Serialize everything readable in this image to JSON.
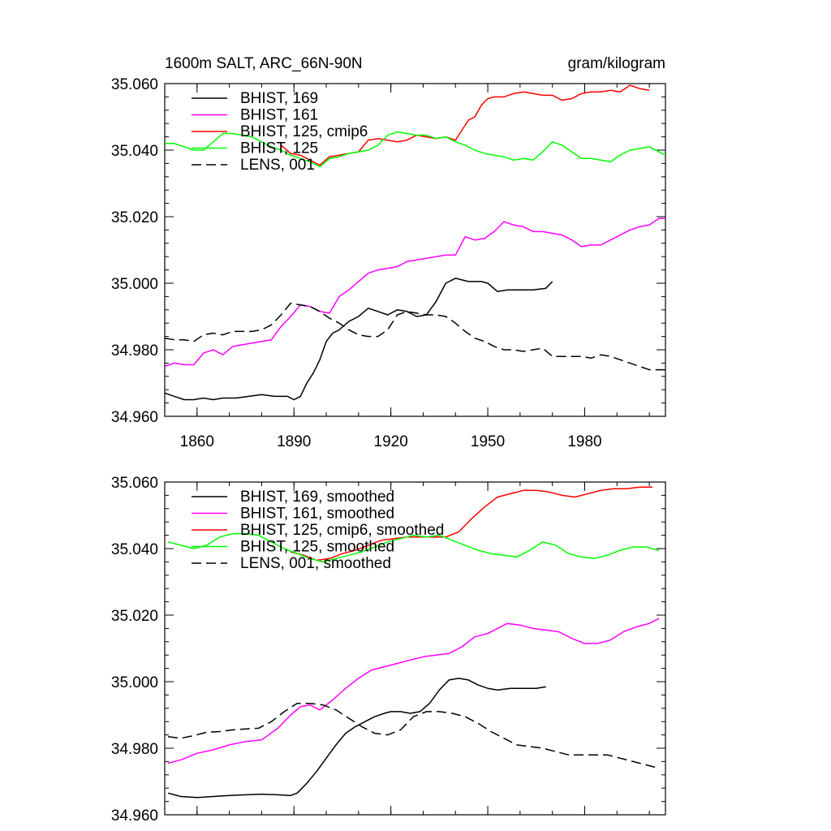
{
  "colors": {
    "black": "#000000",
    "magenta": "#ff00ff",
    "red": "#ff0000",
    "green": "#00ff00"
  },
  "chart_data": [
    {
      "type": "line",
      "title": "1600m SALT, ARC_66N-90N",
      "units": "gram/kilogram",
      "xlim": [
        1850,
        2005
      ],
      "ylim": [
        34.96,
        35.06
      ],
      "xticks": [
        1860,
        1890,
        1920,
        1950,
        1980
      ],
      "xtick_labels": [
        "1860",
        "1890",
        "1920",
        "1950",
        "1980"
      ],
      "yticks": [
        34.96,
        34.98,
        35.0,
        35.02,
        35.04,
        35.06
      ],
      "ytick_labels": [
        "34.960",
        "34.980",
        "35.000",
        "35.020",
        "35.040",
        "35.060"
      ],
      "legend_position": "top-left",
      "series": [
        {
          "name": "BHIST, 169",
          "color": "#000000",
          "dash": "solid",
          "x": [
            1850,
            1853,
            1856,
            1859,
            1862,
            1865,
            1868,
            1872,
            1876,
            1880,
            1884,
            1888,
            1890,
            1892,
            1894,
            1896,
            1898,
            1900,
            1902,
            1904,
            1907,
            1910,
            1913,
            1916,
            1919,
            1922,
            1925,
            1928,
            1931,
            1934,
            1937,
            1940,
            1944,
            1948,
            1950,
            1953,
            1956,
            1960,
            1964,
            1968,
            1970
          ],
          "values": [
            34.967,
            34.966,
            34.965,
            34.965,
            34.9655,
            34.965,
            34.9655,
            34.9655,
            34.966,
            34.9665,
            34.966,
            34.966,
            34.965,
            34.966,
            34.97,
            34.973,
            34.977,
            34.9825,
            34.985,
            34.986,
            34.9885,
            34.99,
            34.9925,
            34.9915,
            34.9905,
            34.992,
            34.9915,
            34.99,
            34.9905,
            34.9945,
            35.0,
            35.0015,
            35.0005,
            35.0005,
            35.0,
            34.9975,
            34.998,
            34.998,
            34.998,
            34.9985,
            35.0005
          ]
        },
        {
          "name": "BHIST, 161",
          "color": "#ff00ff",
          "dash": "solid",
          "x": [
            1850,
            1853,
            1856,
            1859,
            1862,
            1865,
            1868,
            1871,
            1874,
            1877,
            1880,
            1883,
            1886,
            1889,
            1892,
            1895,
            1898,
            1901,
            1904,
            1907,
            1910,
            1913,
            1916,
            1919,
            1922,
            1925,
            1928,
            1931,
            1934,
            1937,
            1940,
            1943,
            1946,
            1949,
            1952,
            1955,
            1958,
            1961,
            1964,
            1967,
            1970,
            1973,
            1976,
            1979,
            1982,
            1985,
            1988,
            1991,
            1994,
            1997,
            2000,
            2003,
            2005
          ],
          "values": [
            34.975,
            34.976,
            34.9755,
            34.9755,
            34.979,
            34.98,
            34.9785,
            34.981,
            34.9815,
            34.982,
            34.9825,
            34.983,
            34.987,
            34.99,
            34.9935,
            34.993,
            34.9915,
            34.991,
            34.996,
            34.998,
            35.0005,
            35.003,
            35.004,
            35.0045,
            35.005,
            35.0065,
            35.007,
            35.0075,
            35.008,
            35.0085,
            35.0085,
            35.014,
            35.013,
            35.0135,
            35.0155,
            35.0185,
            35.0175,
            35.017,
            35.0155,
            35.0155,
            35.015,
            35.0145,
            35.013,
            35.011,
            35.0115,
            35.0115,
            35.013,
            35.0145,
            35.016,
            35.017,
            35.0175,
            35.0195,
            35.0195
          ]
        },
        {
          "name": "BHIST, 125, cmip6",
          "color": "#ff0000",
          "dash": "solid",
          "x": [
            1886,
            1889,
            1892,
            1895,
            1898,
            1901,
            1904,
            1907,
            1910,
            1913,
            1916,
            1919,
            1922,
            1925,
            1928,
            1931,
            1934,
            1937,
            1940,
            1942,
            1944,
            1946,
            1948,
            1950,
            1952,
            1955,
            1958,
            1961,
            1964,
            1967,
            1970,
            1973,
            1976,
            1979,
            1982,
            1985,
            1988,
            1991,
            1994,
            1997,
            2000
          ],
          "values": [
            35.0415,
            35.039,
            35.0385,
            35.037,
            35.0355,
            35.038,
            35.0385,
            35.039,
            35.0395,
            35.043,
            35.0435,
            35.043,
            35.0425,
            35.043,
            35.0445,
            35.044,
            35.0435,
            35.044,
            35.043,
            35.046,
            35.049,
            35.05,
            35.0535,
            35.0555,
            35.056,
            35.056,
            35.057,
            35.0575,
            35.057,
            35.0565,
            35.0565,
            35.055,
            35.0555,
            35.057,
            35.0575,
            35.0575,
            35.058,
            35.0575,
            35.0595,
            35.0585,
            35.058
          ]
        },
        {
          "name": "BHIST, 125",
          "color": "#00ff00",
          "dash": "solid",
          "x": [
            1850,
            1853,
            1856,
            1859,
            1862,
            1865,
            1868,
            1871,
            1874,
            1877,
            1880,
            1883,
            1886,
            1889,
            1892,
            1895,
            1898,
            1901,
            1904,
            1907,
            1910,
            1913,
            1916,
            1919,
            1922,
            1925,
            1928,
            1931,
            1934,
            1937,
            1940,
            1943,
            1946,
            1949,
            1952,
            1955,
            1958,
            1961,
            1964,
            1967,
            1970,
            1973,
            1976,
            1979,
            1982,
            1985,
            1988,
            1991,
            1994,
            1997,
            2000,
            2003,
            2005
          ],
          "values": [
            35.042,
            35.042,
            35.041,
            35.04,
            35.04,
            35.0425,
            35.045,
            35.045,
            35.0445,
            35.044,
            35.0425,
            35.041,
            35.04,
            35.0385,
            35.0375,
            35.0365,
            35.035,
            35.0375,
            35.038,
            35.039,
            35.0395,
            35.04,
            35.0415,
            35.0445,
            35.0455,
            35.045,
            35.0445,
            35.0445,
            35.0435,
            35.044,
            35.0425,
            35.0415,
            35.04,
            35.039,
            35.0385,
            35.038,
            35.037,
            35.0375,
            35.037,
            35.0395,
            35.0425,
            35.0415,
            35.0395,
            35.0375,
            35.0375,
            35.037,
            35.0365,
            35.0385,
            35.04,
            35.0405,
            35.041,
            35.0395,
            35.0385
          ]
        },
        {
          "name": "LENS, 001",
          "color": "#000000",
          "dash": "dashed",
          "x": [
            1850,
            1853,
            1856,
            1859,
            1862,
            1865,
            1868,
            1871,
            1874,
            1877,
            1880,
            1883,
            1886,
            1889,
            1892,
            1895,
            1898,
            1901,
            1904,
            1907,
            1910,
            1913,
            1916,
            1919,
            1922,
            1925,
            1928,
            1931,
            1934,
            1937,
            1940,
            1943,
            1946,
            1949,
            1952,
            1955,
            1958,
            1961,
            1964,
            1967,
            1970,
            1973,
            1976,
            1979,
            1982,
            1985,
            1988,
            1991,
            1994,
            1997,
            2000,
            2003,
            2005
          ],
          "values": [
            34.9835,
            34.983,
            34.983,
            34.9825,
            34.9845,
            34.985,
            34.9845,
            34.9855,
            34.9855,
            34.9855,
            34.986,
            34.9875,
            34.9905,
            34.994,
            34.9935,
            34.993,
            34.9915,
            34.9895,
            34.988,
            34.986,
            34.9845,
            34.984,
            34.984,
            34.986,
            34.9905,
            34.9915,
            34.991,
            34.9905,
            34.9905,
            34.99,
            34.988,
            34.9855,
            34.9835,
            34.9825,
            34.981,
            34.98,
            34.98,
            34.9795,
            34.98,
            34.9805,
            34.978,
            34.978,
            34.978,
            34.978,
            34.9775,
            34.9785,
            34.978,
            34.977,
            34.976,
            34.975,
            34.974,
            34.974,
            34.974
          ]
        }
      ]
    },
    {
      "type": "line",
      "title": "",
      "units": "",
      "xlim": [
        1850,
        2005
      ],
      "ylim": [
        34.96,
        35.06
      ],
      "xticks": [
        1860,
        1890,
        1920,
        1950,
        1980
      ],
      "yticks": [
        34.96,
        34.98,
        35.0,
        35.02,
        35.04,
        35.06
      ],
      "ytick_labels": [
        "34.960",
        "34.980",
        "35.000",
        "35.020",
        "35.040",
        "35.060"
      ],
      "legend_position": "top-left",
      "series": [
        {
          "name": "BHIST, 169, smoothed",
          "color": "#000000",
          "dash": "solid",
          "x": [
            1851,
            1855,
            1860,
            1865,
            1870,
            1875,
            1880,
            1885,
            1889,
            1891,
            1894,
            1897,
            1900,
            1903,
            1906,
            1909,
            1912,
            1915,
            1918,
            1920,
            1923,
            1926,
            1929,
            1932,
            1935,
            1938,
            1941,
            1944,
            1947,
            1950,
            1953,
            1957,
            1961,
            1965,
            1968
          ],
          "values": [
            34.9665,
            34.9655,
            34.9652,
            34.9655,
            34.9658,
            34.966,
            34.9662,
            34.966,
            34.9658,
            34.9665,
            34.9695,
            34.973,
            34.977,
            34.981,
            34.9845,
            34.9865,
            34.988,
            34.9895,
            34.9905,
            34.991,
            34.991,
            34.9905,
            34.991,
            34.9935,
            34.9975,
            35.0005,
            35.001,
            35.0005,
            34.999,
            34.998,
            34.9975,
            34.998,
            34.998,
            34.998,
            34.9985
          ]
        },
        {
          "name": "BHIST, 161, smoothed",
          "color": "#ff00ff",
          "dash": "solid",
          "x": [
            1851,
            1855,
            1860,
            1865,
            1870,
            1875,
            1880,
            1885,
            1889,
            1892,
            1895,
            1898,
            1902,
            1906,
            1910,
            1914,
            1918,
            1922,
            1926,
            1930,
            1934,
            1938,
            1942,
            1946,
            1950,
            1953,
            1956,
            1960,
            1964,
            1968,
            1972,
            1976,
            1980,
            1984,
            1988,
            1992,
            1996,
            2000,
            2003
          ],
          "values": [
            34.9755,
            34.9765,
            34.9785,
            34.9795,
            34.981,
            34.982,
            34.9825,
            34.986,
            34.99,
            34.9925,
            34.993,
            34.9915,
            34.9945,
            34.998,
            35.001,
            35.0035,
            35.0045,
            35.0055,
            35.0065,
            35.0075,
            35.008,
            35.0085,
            35.0105,
            35.0135,
            35.0145,
            35.016,
            35.0175,
            35.017,
            35.016,
            35.0155,
            35.015,
            35.013,
            35.0115,
            35.0115,
            35.0125,
            35.015,
            35.0165,
            35.0175,
            35.019
          ]
        },
        {
          "name": "BHIST, 125, cmip6, smoothed",
          "color": "#ff0000",
          "dash": "solid",
          "x": [
            1889,
            1893,
            1897,
            1901,
            1905,
            1909,
            1913,
            1917,
            1921,
            1925,
            1929,
            1933,
            1937,
            1941,
            1945,
            1949,
            1953,
            1957,
            1961,
            1965,
            1969,
            1973,
            1977,
            1981,
            1985,
            1989,
            1993,
            1997,
            2001
          ],
          "values": [
            35.039,
            35.038,
            35.0365,
            35.037,
            35.0385,
            35.0395,
            35.041,
            35.0425,
            35.043,
            35.0435,
            35.0435,
            35.0435,
            35.0435,
            35.045,
            35.049,
            35.0525,
            35.0555,
            35.0565,
            35.0575,
            35.0575,
            35.057,
            35.056,
            35.0555,
            35.0565,
            35.0575,
            35.058,
            35.058,
            35.0585,
            35.0585
          ]
        },
        {
          "name": "BHIST, 125, smoothed",
          "color": "#00ff00",
          "dash": "solid",
          "x": [
            1851,
            1855,
            1859,
            1863,
            1867,
            1871,
            1875,
            1879,
            1883,
            1887,
            1891,
            1895,
            1899,
            1903,
            1907,
            1911,
            1915,
            1919,
            1923,
            1927,
            1931,
            1935,
            1939,
            1943,
            1947,
            1951,
            1955,
            1959,
            1963,
            1967,
            1971,
            1975,
            1979,
            1983,
            1987,
            1991,
            1995,
            1999,
            2003
          ],
          "values": [
            35.042,
            35.041,
            35.04,
            35.041,
            35.0435,
            35.0445,
            35.0445,
            35.044,
            35.042,
            35.04,
            35.0385,
            35.037,
            35.036,
            35.037,
            35.038,
            35.039,
            35.0405,
            35.042,
            35.043,
            35.044,
            35.0435,
            35.044,
            35.0425,
            35.041,
            35.0395,
            35.0385,
            35.038,
            35.0375,
            35.0395,
            35.042,
            35.041,
            35.0385,
            35.0375,
            35.037,
            35.038,
            35.0395,
            35.0405,
            35.0405,
            35.0395
          ]
        },
        {
          "name": "LENS, 001, smoothed",
          "color": "#000000",
          "dash": "dashed",
          "x": [
            1851,
            1855,
            1859,
            1863,
            1867,
            1871,
            1875,
            1879,
            1883,
            1887,
            1891,
            1895,
            1899,
            1903,
            1907,
            1911,
            1915,
            1919,
            1923,
            1927,
            1931,
            1935,
            1939,
            1943,
            1947,
            1951,
            1955,
            1959,
            1963,
            1967,
            1971,
            1975,
            1979,
            1983,
            1987,
            1991,
            1995,
            1999,
            2003
          ],
          "values": [
            34.9835,
            34.983,
            34.9838,
            34.9848,
            34.985,
            34.9855,
            34.9858,
            34.986,
            34.988,
            34.991,
            34.9935,
            34.9935,
            34.993,
            34.9915,
            34.989,
            34.9865,
            34.9845,
            34.984,
            34.9855,
            34.9895,
            34.991,
            34.991,
            34.9905,
            34.9895,
            34.9875,
            34.985,
            34.983,
            34.981,
            34.9805,
            34.98,
            34.979,
            34.978,
            34.978,
            34.978,
            34.978,
            34.977,
            34.976,
            34.975,
            34.974
          ]
        }
      ]
    }
  ]
}
